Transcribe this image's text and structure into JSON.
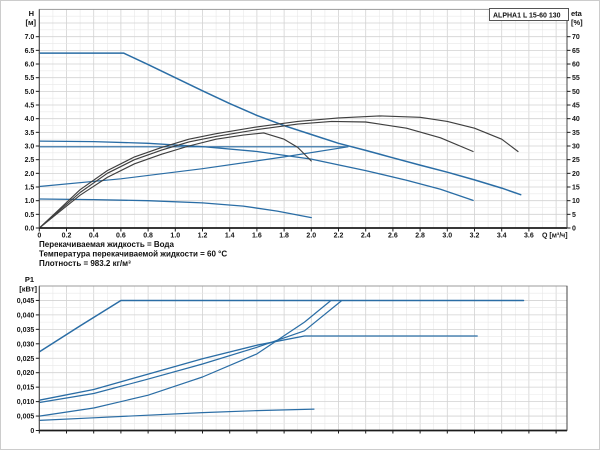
{
  "panel": {
    "title_box": "ALPHA1 L 15-60  130"
  },
  "info_lines": [
    "Перекачиваемая жидкость = Вода",
    "Температура перекачиваемой жидкости = 60 °C",
    "Плотность = 983.2 кг/м³"
  ],
  "colors": {
    "curve_blue": "#2a6da5",
    "eta_dark": "#3f3f3f",
    "grid_minor": "#e8e8e8",
    "grid_major": "#d2d2d2",
    "plot_border": "#9b9b9b",
    "axis_dark": "#1c1c1c"
  },
  "chart_data": [
    {
      "type": "line",
      "title": "ALPHA1 L 15-60 130 — H/Q and efficiency curves",
      "ylabel_left": [
        "H",
        "[м]"
      ],
      "ylabel_right": [
        "eta",
        "[%]"
      ],
      "xlabel": "Q [м³/ч]",
      "xlim": [
        0,
        3.88
      ],
      "ylim_left": [
        0,
        8.0
      ],
      "ylim_right": [
        0,
        80
      ],
      "grid": true,
      "x_tick_labels": [
        "0",
        "0.2",
        "0.4",
        "0.6",
        "0.8",
        "1.0",
        "1.2",
        "1.4",
        "1.6",
        "1.8",
        "2.0",
        "2.2",
        "2.4",
        "2.6",
        "2.8",
        "3.0",
        "3.2",
        "3.4",
        "3.6"
      ],
      "y_left_tick_labels": [
        "0.0",
        "0.5",
        "1.0",
        "1.5",
        "2.0",
        "2.5",
        "3.0",
        "3.5",
        "4.0",
        "4.5",
        "5.0",
        "5.5",
        "6.0",
        "6.5",
        "7.0"
      ],
      "y_right_tick_labels": [
        "0",
        "5",
        "10",
        "15",
        "20",
        "25",
        "30",
        "35",
        "40",
        "45",
        "50",
        "55",
        "60",
        "65",
        "70"
      ],
      "series": [
        {
          "name": "pump-curve-speed-III",
          "axis": "left",
          "color": "blue",
          "width": 1.5,
          "pts": [
            [
              0,
              6.4
            ],
            [
              0.62,
              6.4
            ],
            [
              0.8,
              5.98
            ],
            [
              1.0,
              5.5
            ],
            [
              1.2,
              5.02
            ],
            [
              1.4,
              4.55
            ],
            [
              1.6,
              4.12
            ],
            [
              1.81,
              3.73
            ],
            [
              2.0,
              3.42
            ],
            [
              2.2,
              3.1
            ],
            [
              2.4,
              2.84
            ],
            [
              2.6,
              2.57
            ],
            [
              2.8,
              2.3
            ],
            [
              3.0,
              2.04
            ],
            [
              3.2,
              1.76
            ],
            [
              3.4,
              1.46
            ],
            [
              3.54,
              1.22
            ]
          ]
        },
        {
          "name": "pump-curve-speed-II",
          "axis": "left",
          "color": "blue",
          "width": 1.3,
          "pts": [
            [
              0,
              3.18
            ],
            [
              0.4,
              3.16
            ],
            [
              0.8,
              3.1
            ],
            [
              1.2,
              2.98
            ],
            [
              1.6,
              2.8
            ],
            [
              2.0,
              2.52
            ],
            [
              2.4,
              2.1
            ],
            [
              2.7,
              1.75
            ],
            [
              2.95,
              1.42
            ],
            [
              3.19,
              1.01
            ]
          ]
        },
        {
          "name": "pump-curve-speed-I",
          "axis": "left",
          "color": "blue",
          "width": 1.3,
          "pts": [
            [
              0,
              1.06
            ],
            [
              0.4,
              1.04
            ],
            [
              0.8,
              1.0
            ],
            [
              1.2,
              0.92
            ],
            [
              1.5,
              0.8
            ],
            [
              1.75,
              0.62
            ],
            [
              2.0,
              0.38
            ]
          ]
        },
        {
          "name": "constant-pressure-curve",
          "axis": "left",
          "color": "blue",
          "width": 1.2,
          "pts": [
            [
              0,
              2.97
            ],
            [
              2.26,
              2.97
            ]
          ]
        },
        {
          "name": "proportional-pressure-curve",
          "axis": "left",
          "color": "blue",
          "width": 1.2,
          "pts": [
            [
              0,
              1.52
            ],
            [
              0.6,
              1.8
            ],
            [
              1.2,
              2.17
            ],
            [
              1.8,
              2.6
            ],
            [
              2.27,
              2.97
            ]
          ]
        },
        {
          "name": "eta-curve-speed-III",
          "axis": "right",
          "color": "dark",
          "width": 1.15,
          "pts": [
            [
              0,
              0
            ],
            [
              0.15,
              7
            ],
            [
              0.3,
              14
            ],
            [
              0.5,
              21
            ],
            [
              0.7,
              26
            ],
            [
              0.9,
              29.5
            ],
            [
              1.1,
              32.5
            ],
            [
              1.3,
              34.5
            ],
            [
              1.6,
              37
            ],
            [
              1.9,
              39
            ],
            [
              2.2,
              40.3
            ],
            [
              2.5,
              41
            ],
            [
              2.8,
              40.5
            ],
            [
              3.0,
              39
            ],
            [
              3.2,
              36.5
            ],
            [
              3.4,
              32.5
            ],
            [
              3.52,
              28
            ]
          ]
        },
        {
          "name": "eta-curve-speed-II",
          "axis": "right",
          "color": "dark",
          "width": 1.15,
          "pts": [
            [
              0,
              0
            ],
            [
              0.15,
              6.5
            ],
            [
              0.3,
              13
            ],
            [
              0.5,
              20
            ],
            [
              0.7,
              25
            ],
            [
              0.9,
              28.5
            ],
            [
              1.1,
              31.5
            ],
            [
              1.3,
              33.5
            ],
            [
              1.6,
              36
            ],
            [
              1.9,
              38
            ],
            [
              2.15,
              39
            ],
            [
              2.4,
              38.8
            ],
            [
              2.7,
              36.5
            ],
            [
              2.95,
              33
            ],
            [
              3.19,
              28
            ]
          ]
        },
        {
          "name": "eta-curve-speed-I",
          "axis": "right",
          "color": "dark",
          "width": 1.15,
          "pts": [
            [
              0,
              0
            ],
            [
              0.15,
              6
            ],
            [
              0.3,
              12
            ],
            [
              0.5,
              18.5
            ],
            [
              0.7,
              23.5
            ],
            [
              0.9,
              27
            ],
            [
              1.1,
              30
            ],
            [
              1.3,
              32.5
            ],
            [
              1.5,
              34
            ],
            [
              1.65,
              34.8
            ],
            [
              1.8,
              32.5
            ],
            [
              1.9,
              29.5
            ],
            [
              2.0,
              24.5
            ]
          ]
        }
      ]
    },
    {
      "type": "line",
      "title": "Power input P1",
      "ylabel_left": [
        "P1",
        "[кВт]"
      ],
      "xlabel": "",
      "xlim": [
        0,
        3.88
      ],
      "ylim_left": [
        0,
        0.05
      ],
      "grid": true,
      "y_left_tick_labels": [
        "0",
        "0,005",
        "0,010",
        "0,015",
        "0,020",
        "0,025",
        "0,030",
        "0,035",
        "0,040",
        "0,045"
      ],
      "series": [
        {
          "name": "power-curve-speed-III",
          "axis": "left",
          "color": "blue",
          "width": 1.5,
          "pts": [
            [
              0,
              0.0272
            ],
            [
              0.3,
              0.0362
            ],
            [
              0.6,
              0.045
            ],
            [
              3.56,
              0.045
            ]
          ]
        },
        {
          "name": "power-curve-speed-II",
          "axis": "left",
          "color": "blue",
          "width": 1.3,
          "pts": [
            [
              0,
              0.0105
            ],
            [
              0.4,
              0.0142
            ],
            [
              0.8,
              0.0195
            ],
            [
              1.2,
              0.0248
            ],
            [
              1.6,
              0.0295
            ],
            [
              1.95,
              0.0327
            ],
            [
              3.22,
              0.0327
            ]
          ]
        },
        {
          "name": "power-curve-proportional-pressure",
          "axis": "left",
          "color": "blue",
          "width": 1.2,
          "pts": [
            [
              0,
              0.0097
            ],
            [
              0.4,
              0.0128
            ],
            [
              0.8,
              0.0178
            ],
            [
              1.2,
              0.023
            ],
            [
              1.6,
              0.0288
            ],
            [
              1.95,
              0.0345
            ],
            [
              2.22,
              0.0448
            ]
          ]
        },
        {
          "name": "power-curve-constant-pressure",
          "axis": "left",
          "color": "blue",
          "width": 1.2,
          "pts": [
            [
              0,
              0.005
            ],
            [
              0.4,
              0.0078
            ],
            [
              0.8,
              0.0122
            ],
            [
              1.2,
              0.0185
            ],
            [
              1.6,
              0.0265
            ],
            [
              1.95,
              0.0375
            ],
            [
              2.14,
              0.0448
            ]
          ]
        },
        {
          "name": "power-curve-speed-I",
          "axis": "left",
          "color": "blue",
          "width": 1.2,
          "pts": [
            [
              0,
              0.0035
            ],
            [
              0.4,
              0.0044
            ],
            [
              0.8,
              0.0053
            ],
            [
              1.2,
              0.0062
            ],
            [
              1.6,
              0.0069
            ],
            [
              2.02,
              0.0074
            ]
          ]
        }
      ]
    }
  ]
}
